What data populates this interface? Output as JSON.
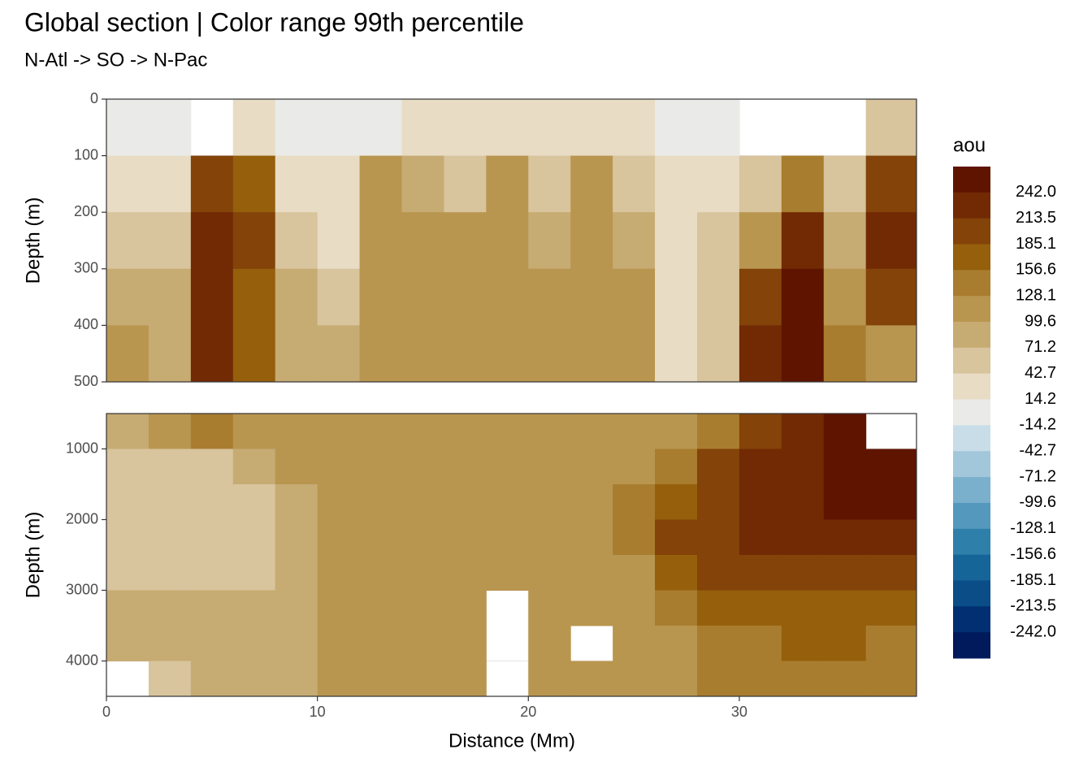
{
  "chart_data": {
    "type": "contour",
    "title": "Global section | Color range 99th percentile",
    "subtitle": "N-Atl -> SO -> N-Pac",
    "x_label": "Distance (Mm)",
    "legend_title": "aou",
    "grid": true,
    "xlim": [
      0,
      38.4
    ],
    "xticks": [
      0,
      10,
      20,
      30
    ],
    "x_edges": [
      0,
      2,
      4,
      6,
      8,
      10,
      12,
      14,
      16,
      18,
      20,
      22,
      24,
      26,
      28,
      30,
      32,
      34,
      36,
      38.4
    ],
    "breaks": [
      {
        "value": 242,
        "label": "242.0"
      },
      213.5,
      185.1,
      156.6,
      128.1,
      99.6,
      71.2,
      42.7,
      14.2,
      -14.2,
      -42.7,
      -71.2,
      -99.6,
      -128.1,
      -156.6,
      -185.1,
      -213.5,
      {
        "value": -242,
        "label": "-242.0"
      }
    ],
    "colors": [
      "#5f1400",
      "#722a04",
      "#834309",
      "#955f0c",
      "#a97d2f",
      "#b9964f",
      "#c6ab73",
      "#d8c49d",
      "#e8dcc5",
      "#eaebe8",
      "#c8dde8",
      "#a3c7da",
      "#7bb0cc",
      "#5499bd",
      "#2f7fab",
      "#166599",
      "#0a4d87",
      "#022f72",
      "#001a5c"
    ],
    "panels": [
      {
        "y_label": "Depth (m)",
        "ylim": [
          0,
          500
        ],
        "yticks": [
          0,
          100,
          200,
          300,
          400,
          500
        ],
        "depth_edges": [
          0,
          100,
          200,
          300,
          400,
          500
        ],
        "values": [
          [
            0,
            0,
            null,
            20,
            0,
            0,
            10,
            30,
            30,
            40,
            30,
            20,
            20,
            0,
            0,
            null,
            null,
            null,
            60
          ],
          [
            40,
            30,
            200,
            180,
            40,
            20,
            100,
            90,
            70,
            120,
            60,
            100,
            60,
            30,
            20,
            60,
            150,
            60,
            200
          ],
          [
            70,
            60,
            230,
            190,
            70,
            40,
            110,
            110,
            100,
            110,
            80,
            100,
            80,
            40,
            50,
            110,
            230,
            90,
            220
          ],
          [
            90,
            80,
            230,
            180,
            80,
            60,
            110,
            110,
            110,
            110,
            100,
            100,
            110,
            40,
            60,
            200,
            250,
            120,
            200
          ],
          [
            100,
            90,
            220,
            170,
            90,
            80,
            110,
            110,
            110,
            110,
            110,
            110,
            110,
            40,
            70,
            230,
            250,
            140,
            100
          ]
        ]
      },
      {
        "y_label": "Depth (m)",
        "ylim": [
          500,
          4500
        ],
        "yticks": [
          1000,
          2000,
          3000,
          4000
        ],
        "depth_edges": [
          500,
          1000,
          1500,
          2000,
          2500,
          3000,
          3500,
          4000,
          4500
        ],
        "values": [
          [
            90,
            100,
            130,
            120,
            110,
            110,
            110,
            110,
            110,
            110,
            110,
            110,
            110,
            110,
            150,
            200,
            240,
            250,
            null
          ],
          [
            60,
            60,
            70,
            80,
            100,
            110,
            110,
            110,
            110,
            110,
            110,
            110,
            120,
            150,
            190,
            220,
            240,
            250,
            250
          ],
          [
            50,
            50,
            50,
            50,
            80,
            110,
            110,
            110,
            110,
            110,
            110,
            110,
            130,
            170,
            200,
            220,
            240,
            250,
            250
          ],
          [
            50,
            50,
            50,
            50,
            80,
            110,
            110,
            110,
            110,
            110,
            110,
            110,
            130,
            200,
            210,
            220,
            230,
            240,
            230
          ],
          [
            60,
            70,
            70,
            70,
            90,
            110,
            110,
            110,
            110,
            110,
            110,
            110,
            120,
            180,
            190,
            200,
            210,
            210,
            200
          ],
          [
            80,
            80,
            80,
            80,
            90,
            110,
            110,
            110,
            110,
            null,
            110,
            110,
            110,
            140,
            170,
            180,
            180,
            180,
            170
          ],
          [
            80,
            80,
            80,
            80,
            90,
            110,
            110,
            110,
            110,
            null,
            110,
            null,
            110,
            120,
            140,
            150,
            160,
            160,
            150
          ],
          [
            null,
            70,
            80,
            80,
            80,
            100,
            100,
            110,
            110,
            null,
            110,
            110,
            110,
            110,
            130,
            140,
            140,
            140,
            140
          ]
        ]
      }
    ]
  }
}
